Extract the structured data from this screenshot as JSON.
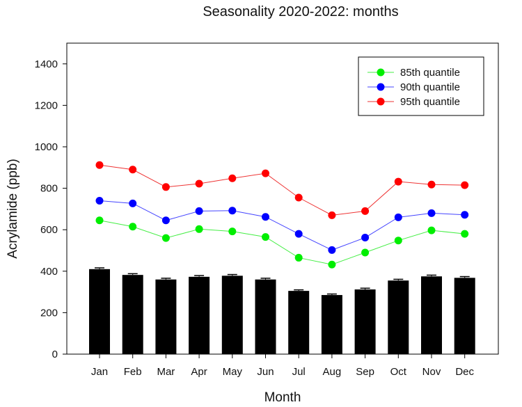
{
  "chart_data": {
    "type": "bar",
    "title": "Seasonality 2020-2022: months",
    "xlabel": "Month",
    "ylabel": "Acrylamide (ppb)",
    "ylim": [
      0,
      1500
    ],
    "yticks": [
      0,
      200,
      400,
      600,
      800,
      1000,
      1200,
      1400
    ],
    "categories": [
      "Jan",
      "Feb",
      "Mar",
      "Apr",
      "May",
      "Jun",
      "Jul",
      "Aug",
      "Sep",
      "Oct",
      "Nov",
      "Dec"
    ],
    "bars": {
      "values": [
        410,
        382,
        360,
        373,
        378,
        360,
        305,
        285,
        312,
        355,
        375,
        368
      ],
      "error": [
        6,
        6,
        6,
        6,
        6,
        6,
        5,
        5,
        6,
        6,
        6,
        6
      ],
      "color": "#000000"
    },
    "series": [
      {
        "name": "85th quantile",
        "color": "#00ee00",
        "line_color": "#44ee44",
        "values": [
          645,
          615,
          560,
          603,
          592,
          565,
          465,
          432,
          490,
          548,
          597,
          580
        ]
      },
      {
        "name": "90th quantile",
        "color": "#0000ff",
        "line_color": "#4444ff",
        "values": [
          740,
          727,
          645,
          690,
          692,
          662,
          580,
          502,
          562,
          660,
          680,
          672
        ]
      },
      {
        "name": "95th quantile",
        "color": "#ff0000",
        "line_color": "#ee3333",
        "values": [
          912,
          890,
          806,
          822,
          848,
          872,
          755,
          670,
          690,
          832,
          818,
          815
        ]
      }
    ],
    "legend_position": "top-right",
    "grid": false
  }
}
